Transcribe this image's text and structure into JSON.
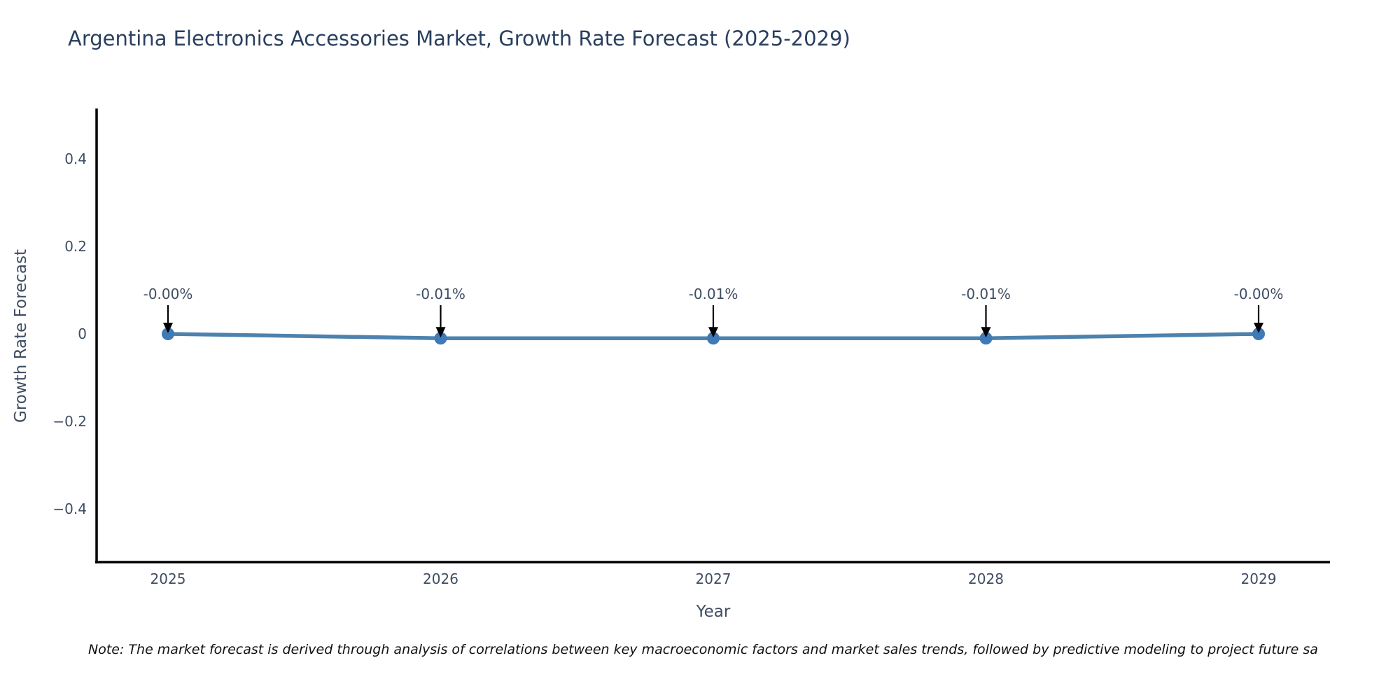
{
  "note": "Note: The market forecast is derived through analysis of correlations between key macroeconomic factors and market sales trends, followed by predictive modeling to project future sa",
  "chart_data": {
    "type": "line",
    "title": "Argentina Electronics Accessories Market, Growth Rate Forecast (2025-2029)",
    "xlabel": "Year",
    "ylabel": "Growth Rate Forecast",
    "x": [
      2025,
      2026,
      2027,
      2028,
      2029
    ],
    "x_tick_labels": [
      "2025",
      "2026",
      "2027",
      "2028",
      "2029"
    ],
    "y": [
      0.0,
      -0.01,
      -0.01,
      -0.01,
      0.0
    ],
    "point_labels": [
      "-0.00%",
      "-0.01%",
      "-0.01%",
      "-0.01%",
      "-0.00%"
    ],
    "yticks": [
      0.4,
      0.2,
      0,
      -0.2,
      -0.4
    ],
    "ytick_labels": [
      "0.4",
      "0.2",
      "0",
      "−0.2",
      "−0.4"
    ],
    "ylim": [
      -0.52,
      0.52
    ],
    "grid": false,
    "legend": false,
    "annotations_have_arrows": true,
    "colors": {
      "line": "#4d82ad",
      "marker": "#3f7ab8",
      "axis": "#000000",
      "arrow": "#000000",
      "annotation_text": "#3f4d63",
      "tick_text": "#3f4d63",
      "title_text": "#2a3f5f"
    }
  }
}
